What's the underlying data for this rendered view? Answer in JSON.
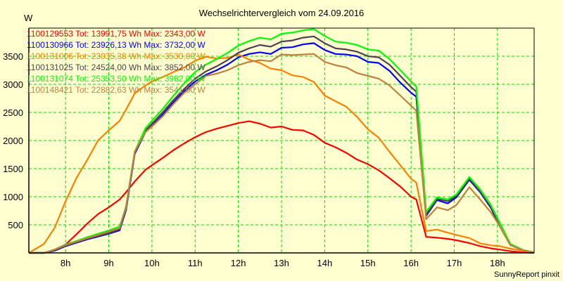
{
  "chart_data": {
    "type": "line",
    "title": "Wechselrichtervergleich vom 24.09.2016",
    "ylabel": "W",
    "xlabel": "",
    "footer": "SunnyReport pinxit",
    "ylim": [
      0,
      4000
    ],
    "xlim": [
      7.15,
      18.85
    ],
    "grid": true,
    "legend_position": "top-left",
    "y_ticks": [
      500,
      1000,
      1500,
      2000,
      2500,
      3000,
      3500
    ],
    "x_ticks": [
      {
        "value": 8,
        "label": "8h"
      },
      {
        "value": 9,
        "label": "9h"
      },
      {
        "value": 10,
        "label": "10h"
      },
      {
        "value": 11,
        "label": "11h"
      },
      {
        "value": 12,
        "label": "12h"
      },
      {
        "value": 13,
        "label": "13h"
      },
      {
        "value": 14,
        "label": "14h"
      },
      {
        "value": 15,
        "label": "15h"
      },
      {
        "value": 16,
        "label": "16h"
      },
      {
        "value": 17,
        "label": "17h"
      },
      {
        "value": 18,
        "label": "18h"
      }
    ],
    "x": [
      7.15,
      7.5,
      7.75,
      8,
      8.25,
      8.5,
      8.75,
      9,
      9.25,
      9.4,
      9.6,
      9.85,
      10,
      10.25,
      10.5,
      10.75,
      11,
      11.25,
      11.5,
      11.75,
      12,
      12.25,
      12.5,
      12.75,
      13,
      13.25,
      13.5,
      13.75,
      14,
      14.25,
      14.5,
      14.75,
      15,
      15.25,
      15.5,
      15.75,
      16,
      16.12,
      16.35,
      16.6,
      16.85,
      17.05,
      17.35,
      17.6,
      17.85,
      18.05,
      18.3,
      18.6,
      18.85
    ],
    "series": [
      {
        "name": "1100129553",
        "legend": "1100129553 Tot: 13991,75 Wh Max: 2343,00 W",
        "color": "#ff0000",
        "values": [
          0,
          0,
          60,
          150,
          330,
          520,
          690,
          810,
          950,
          1080,
          1270,
          1480,
          1560,
          1690,
          1830,
          1950,
          2060,
          2150,
          2210,
          2260,
          2310,
          2343,
          2300,
          2230,
          2250,
          2190,
          2180,
          2100,
          1960,
          1880,
          1780,
          1660,
          1580,
          1470,
          1330,
          1180,
          1000,
          950,
          285,
          270,
          250,
          225,
          175,
          120,
          80,
          60,
          30,
          10,
          0
        ]
      },
      {
        "name": "1100130966",
        "legend": "1100130966 Tot: 23926,13 Wh Max: 3732,00 W",
        "color": "#0000ff",
        "values": [
          0,
          0,
          40,
          120,
          180,
          240,
          290,
          340,
          400,
          760,
          1760,
          2150,
          2260,
          2460,
          2680,
          2880,
          3050,
          3170,
          3250,
          3350,
          3480,
          3540,
          3570,
          3540,
          3650,
          3660,
          3710,
          3732,
          3610,
          3540,
          3530,
          3500,
          3400,
          3380,
          3240,
          3030,
          2850,
          2780,
          660,
          940,
          880,
          990,
          1300,
          1080,
          800,
          480,
          140,
          45,
          10
        ]
      },
      {
        "name": "1100131006",
        "legend": "1100131006 Tot: 23035,38 Wh Max: 3530,00 W",
        "color": "#ff8000",
        "values": [
          0,
          160,
          450,
          920,
          1330,
          1650,
          2000,
          2180,
          2350,
          2550,
          2840,
          2980,
          3050,
          3130,
          3220,
          3300,
          3420,
          3490,
          3460,
          3470,
          3530,
          3440,
          3380,
          3280,
          3250,
          3160,
          3130,
          3040,
          2800,
          2700,
          2600,
          2420,
          2200,
          2050,
          1800,
          1560,
          1320,
          1250,
          390,
          415,
          360,
          320,
          265,
          170,
          135,
          120,
          75,
          40,
          10
        ]
      },
      {
        "name": "1100131025",
        "legend": "1100131025 Tot: 24524,00 Wh Max: 3852,00 W",
        "color": "#504050",
        "values": [
          0,
          0,
          50,
          130,
          190,
          250,
          300,
          350,
          420,
          780,
          1780,
          2180,
          2300,
          2500,
          2720,
          2920,
          3100,
          3230,
          3320,
          3430,
          3560,
          3640,
          3700,
          3670,
          3760,
          3780,
          3830,
          3852,
          3730,
          3640,
          3620,
          3580,
          3500,
          3480,
          3350,
          3150,
          2950,
          2870,
          680,
          960,
          920,
          1010,
          1320,
          1090,
          820,
          500,
          150,
          45,
          10
        ]
      },
      {
        "name": "1100131074",
        "legend": "1100131074 Tot: 25353,50 Wh Max: 3982,00 W",
        "color": "#00ff00",
        "values": [
          0,
          0,
          60,
          150,
          210,
          280,
          340,
          400,
          470,
          800,
          1800,
          2220,
          2350,
          2560,
          2800,
          3020,
          3220,
          3350,
          3450,
          3560,
          3690,
          3770,
          3830,
          3800,
          3900,
          3920,
          3960,
          3982,
          3860,
          3760,
          3740,
          3700,
          3620,
          3600,
          3450,
          3250,
          3050,
          2960,
          730,
          990,
          950,
          1040,
          1350,
          1130,
          850,
          540,
          160,
          50,
          10
        ]
      },
      {
        "name": "1100148421",
        "legend": "1100148421 Tot: 22882,63 Wh Max: 3541,00 W",
        "color": "#c08040",
        "values": [
          0,
          0,
          60,
          140,
          200,
          260,
          320,
          380,
          440,
          830,
          1800,
          2150,
          2250,
          2430,
          2650,
          2850,
          3000,
          3150,
          3190,
          3250,
          3340,
          3400,
          3430,
          3410,
          3530,
          3520,
          3530,
          3541,
          3400,
          3340,
          3300,
          3200,
          3150,
          3100,
          2980,
          2800,
          2620,
          2530,
          600,
          810,
          760,
          850,
          1170,
          950,
          720,
          480,
          140,
          45,
          10
        ]
      }
    ]
  }
}
